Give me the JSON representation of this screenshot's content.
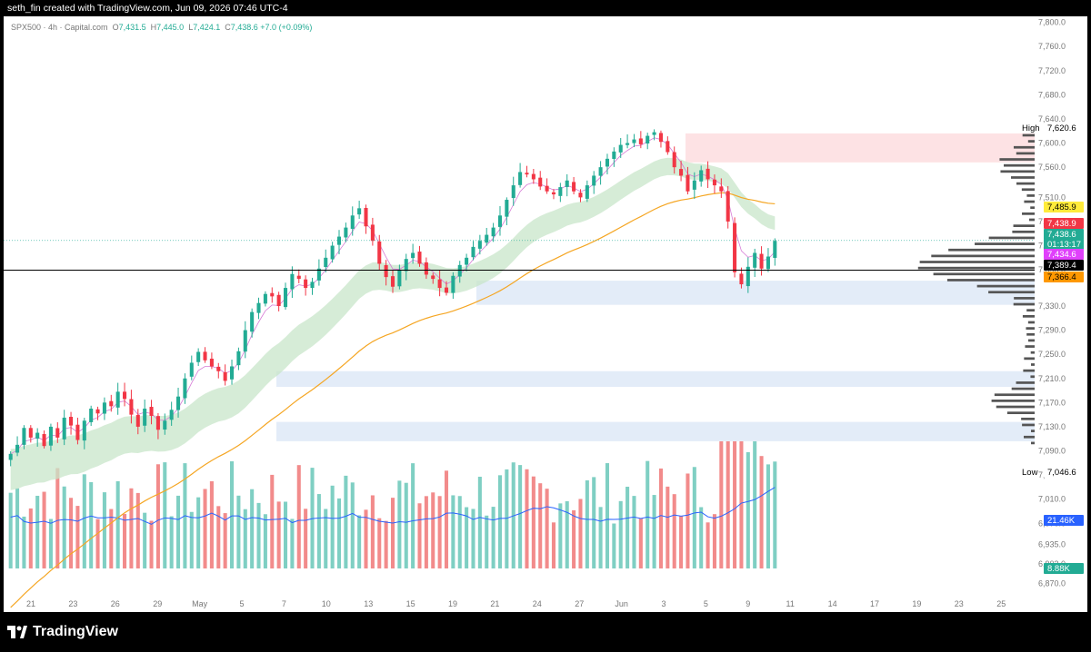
{
  "header": {
    "credit": "seth_fin created with TradingView.com, Jun 09, 2026 07:46 UTC-4"
  },
  "legend": {
    "symbol": "SPX500 · 4h · Capital.com",
    "o_label": "O",
    "o": "7,431.5",
    "h_label": "H",
    "h": "7,445.0",
    "l_label": "L",
    "l": "7,424.1",
    "c_label": "C",
    "c": "7,438.6",
    "change": "+7.0 (+0.09%)"
  },
  "footer": {
    "brand": "TradingView"
  },
  "colors": {
    "up": "#22ab94",
    "down": "#f23645",
    "ema": "#f5a623",
    "cloud": "#c8e6c9"
  },
  "chart_data": {
    "type": "candlestick",
    "y_axis": {
      "ylim": [
        6850,
        7810
      ],
      "ticks": [
        7800,
        7760,
        7720,
        7680,
        7640,
        7600,
        7560,
        7510,
        7470,
        7430,
        7390,
        7330,
        7290,
        7250,
        7210,
        7170,
        7130,
        7090,
        7050,
        7010,
        6970,
        6935,
        6903,
        6870
      ],
      "tick_labels": [
        "7,800.0",
        "7,760.0",
        "7,720.0",
        "7,680.0",
        "7,640.0",
        "7,600.0",
        "7,560.0",
        "7,510.0",
        "7,470.0",
        "7,430.0",
        "7,390.0",
        "7,330.0",
        "7,290.0",
        "7,250.0",
        "7,210.0",
        "7,170.0",
        "7,130.0",
        "7,090.0",
        "7,050.0",
        "7,010.0",
        "6,970.0",
        "6,935.0",
        "6,903.0",
        "6,870.0"
      ]
    },
    "x_labels": [
      "21",
      "23",
      "26",
      "29",
      "May",
      "5",
      "7",
      "10",
      "13",
      "15",
      "19",
      "21",
      "24",
      "27",
      "Jun",
      "3",
      "5",
      "9",
      "11",
      "14",
      "17",
      "19",
      "23",
      "25"
    ],
    "closes": [
      7085,
      7100,
      7128,
      7112,
      7120,
      7098,
      7130,
      7112,
      7145,
      7132,
      7108,
      7140,
      7160,
      7152,
      7170,
      7164,
      7188,
      7176,
      7150,
      7130,
      7160,
      7148,
      7125,
      7140,
      7158,
      7180,
      7210,
      7236,
      7254,
      7240,
      7230,
      7222,
      7206,
      7230,
      7255,
      7290,
      7320,
      7335,
      7350,
      7346,
      7330,
      7360,
      7383,
      7375,
      7360,
      7370,
      7392,
      7410,
      7430,
      7445,
      7460,
      7480,
      7492,
      7462,
      7438,
      7400,
      7378,
      7362,
      7390,
      7408,
      7418,
      7400,
      7382,
      7375,
      7360,
      7352,
      7380,
      7398,
      7410,
      7428,
      7438,
      7448,
      7460,
      7480,
      7506,
      7530,
      7552,
      7548,
      7540,
      7528,
      7520,
      7515,
      7527,
      7538,
      7520,
      7510,
      7530,
      7546,
      7560,
      7574,
      7586,
      7597,
      7600,
      7606,
      7598,
      7612,
      7618,
      7602,
      7585,
      7560,
      7546,
      7520,
      7538,
      7555,
      7540,
      7530,
      7520,
      7470,
      7386,
      7366,
      7395,
      7418,
      7392,
      7412,
      7438
    ],
    "price_tags": [
      {
        "label": "High",
        "value": "7,620.6"
      },
      {
        "label": "",
        "value": "7,485.9"
      },
      {
        "label": "",
        "value": "7,438.9"
      },
      {
        "label": "",
        "value": "7,438.6"
      },
      {
        "label": "",
        "value": "01:13:17"
      },
      {
        "label": "",
        "value": "7,434.6"
      },
      {
        "label": "",
        "value": "7,389.4"
      },
      {
        "label": "",
        "value": "7,366.4"
      },
      {
        "label": "Low",
        "value": "7,046.6"
      },
      {
        "label": "",
        "value": "21.46K"
      },
      {
        "label": "",
        "value": "8.88K"
      }
    ],
    "horizontal_line": 7389.4,
    "resistance_zone": [
      7568,
      7616
    ],
    "support_zones": [
      [
        7332,
        7372
      ],
      [
        7196,
        7222
      ],
      [
        7106,
        7138
      ]
    ],
    "grid": false,
    "volume_visible": true
  }
}
